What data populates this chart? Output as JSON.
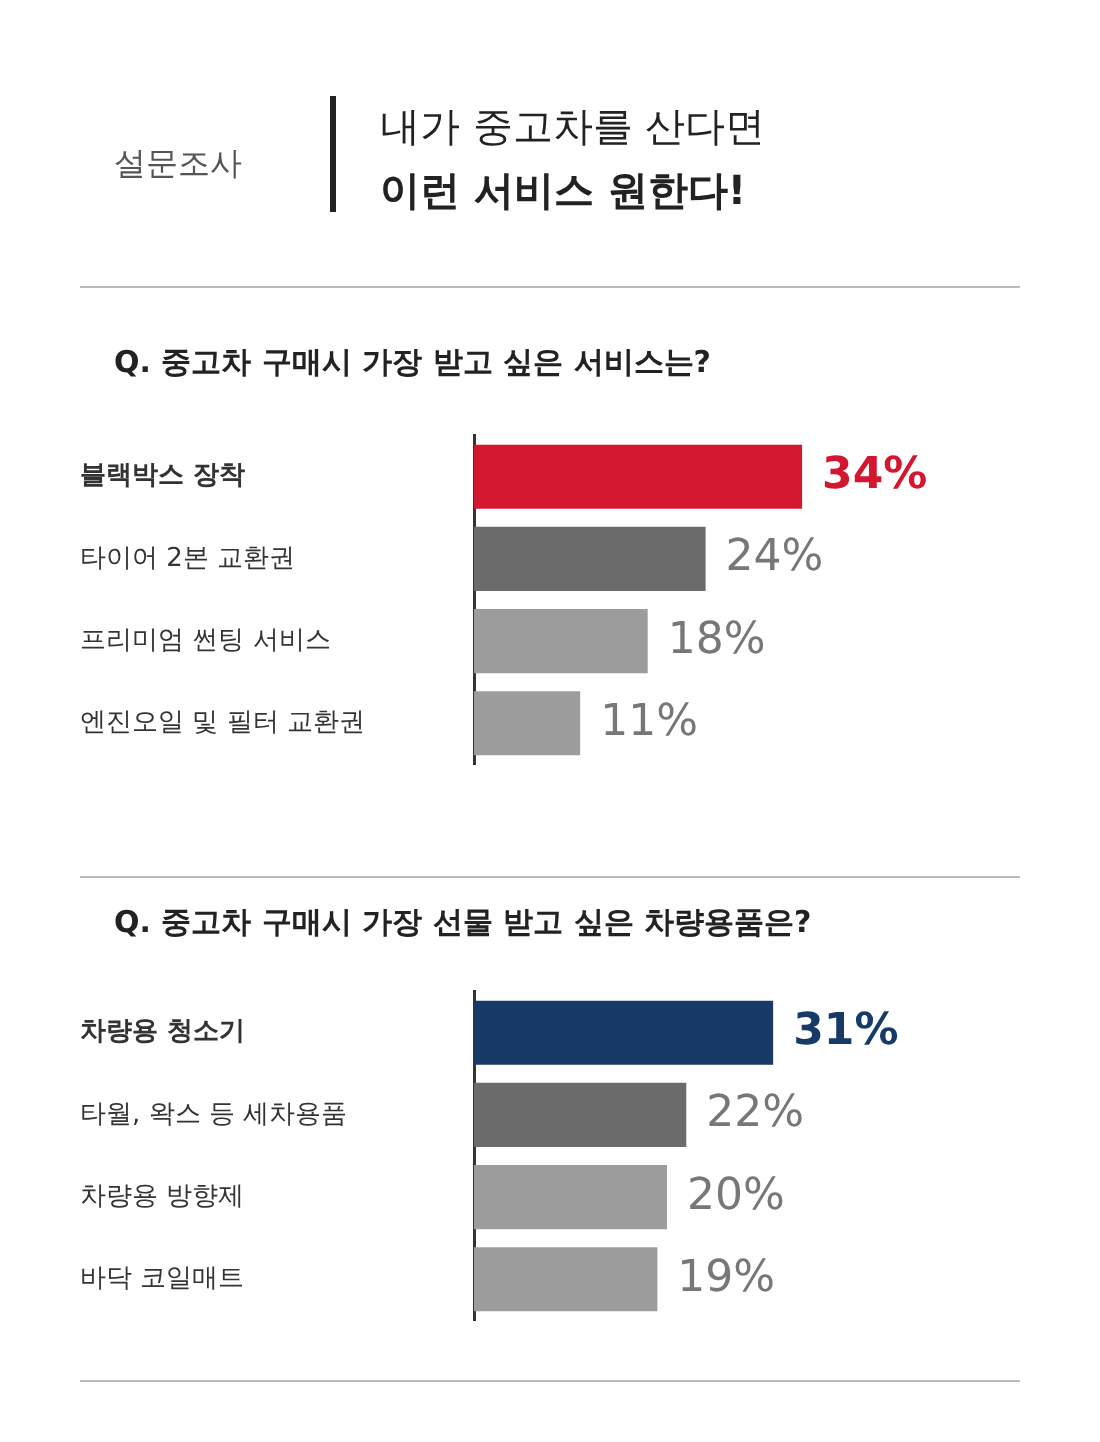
{
  "chart_data": [
    {
      "type": "bar",
      "orientation": "horizontal",
      "title": "Q. 중고차 구매시 가장 받고 싶은 서비스는?",
      "annotations": [
        "설문조사",
        "내가 중고차를 산다면",
        "이런 서비스 원한다!"
      ],
      "categories": [
        "블랙박스 장착",
        "타이어 2본 교환권",
        "프리미엄 썬팅 서비스",
        "엔진오일 및 필터 교환권"
      ],
      "values": [
        34,
        24,
        18,
        11
      ],
      "colors": [
        "#d3172e",
        "#6b6b6b",
        "#9c9c9c",
        "#9c9c9c"
      ],
      "value_labels": [
        "34%",
        "24%",
        "18%",
        "11%"
      ],
      "tick_labels": "y"
    },
    {
      "type": "bar",
      "orientation": "horizontal",
      "title": "Q. 중고차 구매시 가장 선물 받고 싶은 차량용품은?",
      "categories": [
        "차량용 청소기",
        "타월, 왁스 등 세차용품",
        "차량용 방향제",
        "바닥 코일매트"
      ],
      "values": [
        31,
        22,
        20,
        19
      ],
      "colors": [
        "#173a66",
        "#6b6b6b",
        "#9c9c9c",
        "#9c9c9c"
      ],
      "value_labels": [
        "31%",
        "22%",
        "20%",
        "19%"
      ],
      "tick_labels": "y"
    }
  ]
}
